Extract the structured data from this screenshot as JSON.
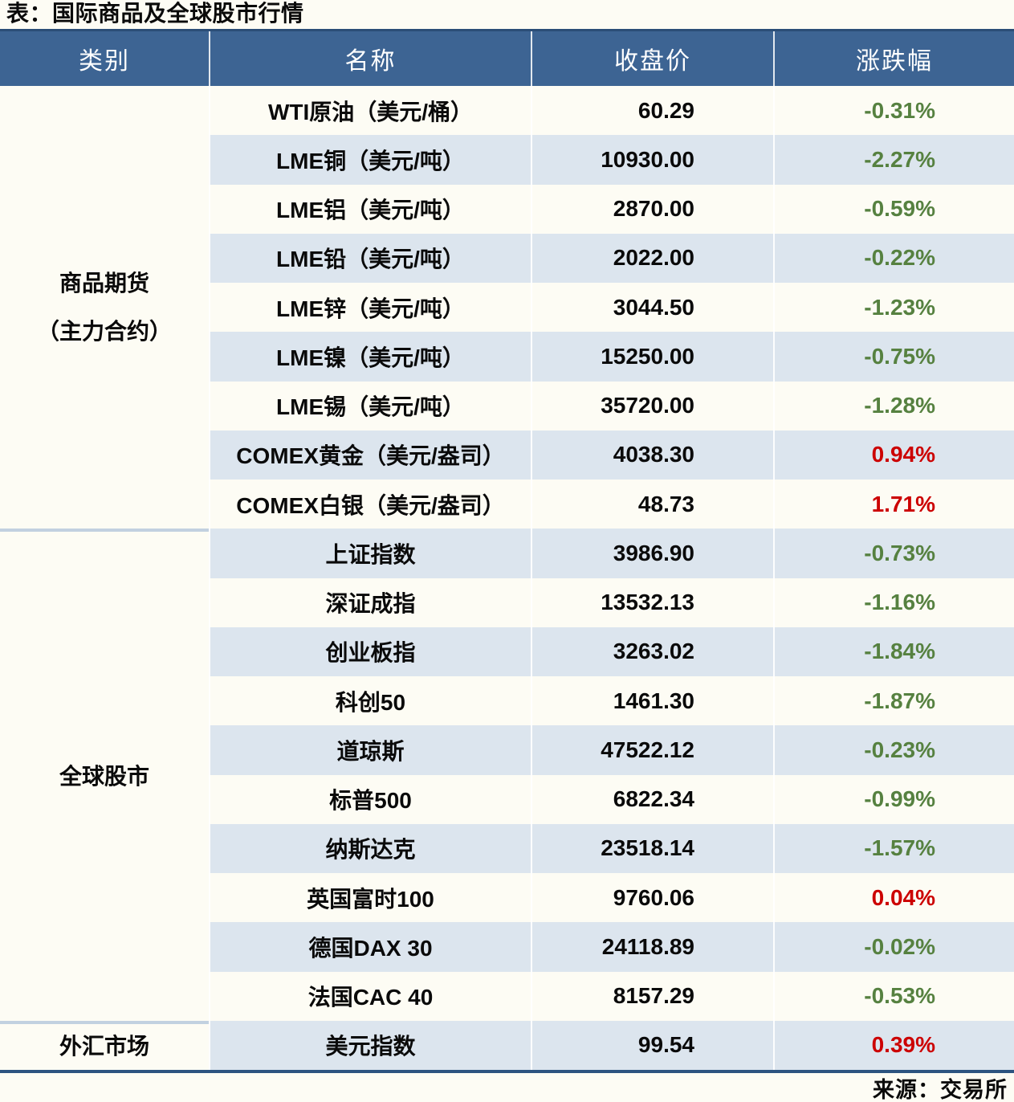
{
  "title": "表：国际商品及全球股市行情",
  "source": "来源：交易所",
  "colors": {
    "page_bg": "#fdfcf4",
    "header_bg": "#3d6493",
    "header_border_top": "#2b4d77",
    "stripe": "#dce5ee",
    "group_divider": "#c2d1e0",
    "bottom_border": "#2d5480",
    "change_up_red": "#cc0000",
    "change_down_green": "#568140"
  },
  "chart_data": {
    "type": "table",
    "title": "表：国际商品及全球股市行情",
    "columns": [
      "类别",
      "名称",
      "收盘价",
      "涨跌幅"
    ],
    "groups": [
      {
        "category": "商品期货（主力合约）",
        "category_lines": [
          "商品期货",
          "（主力合约）"
        ],
        "row_count": 9
      },
      {
        "category": "全球股市",
        "category_lines": [
          "全球股市"
        ],
        "row_count": 10
      },
      {
        "category": "外汇市场",
        "category_lines": [
          "外汇市场"
        ],
        "row_count": 1
      }
    ],
    "rows": [
      {
        "category": "商品期货（主力合约）",
        "name": "WTI原油（美元/桶）",
        "close": "60.29",
        "change_pct": "-0.31%"
      },
      {
        "category": "商品期货（主力合约）",
        "name": "LME铜（美元/吨）",
        "close": "10930.00",
        "change_pct": "-2.27%"
      },
      {
        "category": "商品期货（主力合约）",
        "name": "LME铝（美元/吨）",
        "close": "2870.00",
        "change_pct": "-0.59%"
      },
      {
        "category": "商品期货（主力合约）",
        "name": "LME铅（美元/吨）",
        "close": "2022.00",
        "change_pct": "-0.22%"
      },
      {
        "category": "商品期货（主力合约）",
        "name": "LME锌（美元/吨）",
        "close": "3044.50",
        "change_pct": "-1.23%"
      },
      {
        "category": "商品期货（主力合约）",
        "name": "LME镍（美元/吨）",
        "close": "15250.00",
        "change_pct": "-0.75%"
      },
      {
        "category": "商品期货（主力合约）",
        "name": "LME锡（美元/吨）",
        "close": "35720.00",
        "change_pct": "-1.28%"
      },
      {
        "category": "商品期货（主力合约）",
        "name": "COMEX黄金（美元/盎司）",
        "close": "4038.30",
        "change_pct": "0.94%"
      },
      {
        "category": "商品期货（主力合约）",
        "name": "COMEX白银（美元/盎司）",
        "close": "48.73",
        "change_pct": "1.71%"
      },
      {
        "category": "全球股市",
        "name": "上证指数",
        "close": "3986.90",
        "change_pct": "-0.73%"
      },
      {
        "category": "全球股市",
        "name": "深证成指",
        "close": "13532.13",
        "change_pct": "-1.16%"
      },
      {
        "category": "全球股市",
        "name": "创业板指",
        "close": "3263.02",
        "change_pct": "-1.84%"
      },
      {
        "category": "全球股市",
        "name": "科创50",
        "close": "1461.30",
        "change_pct": "-1.87%"
      },
      {
        "category": "全球股市",
        "name": "道琼斯",
        "close": "47522.12",
        "change_pct": "-0.23%"
      },
      {
        "category": "全球股市",
        "name": "标普500",
        "close": "6822.34",
        "change_pct": "-0.99%"
      },
      {
        "category": "全球股市",
        "name": "纳斯达克",
        "close": "23518.14",
        "change_pct": "-1.57%"
      },
      {
        "category": "全球股市",
        "name": "英国富时100",
        "close": "9760.06",
        "change_pct": "0.04%"
      },
      {
        "category": "全球股市",
        "name": "德国DAX 30",
        "close": "24118.89",
        "change_pct": "-0.02%"
      },
      {
        "category": "全球股市",
        "name": "法国CAC 40",
        "close": "8157.29",
        "change_pct": "-0.53%"
      },
      {
        "category": "外汇市场",
        "name": "美元指数",
        "close": "99.54",
        "change_pct": "0.39%"
      }
    ],
    "source": "来源：交易所",
    "layout": {
      "stripe_pattern": "even-rows-shaded",
      "negative_color_meaning": "green",
      "positive_color_meaning": "red"
    }
  }
}
